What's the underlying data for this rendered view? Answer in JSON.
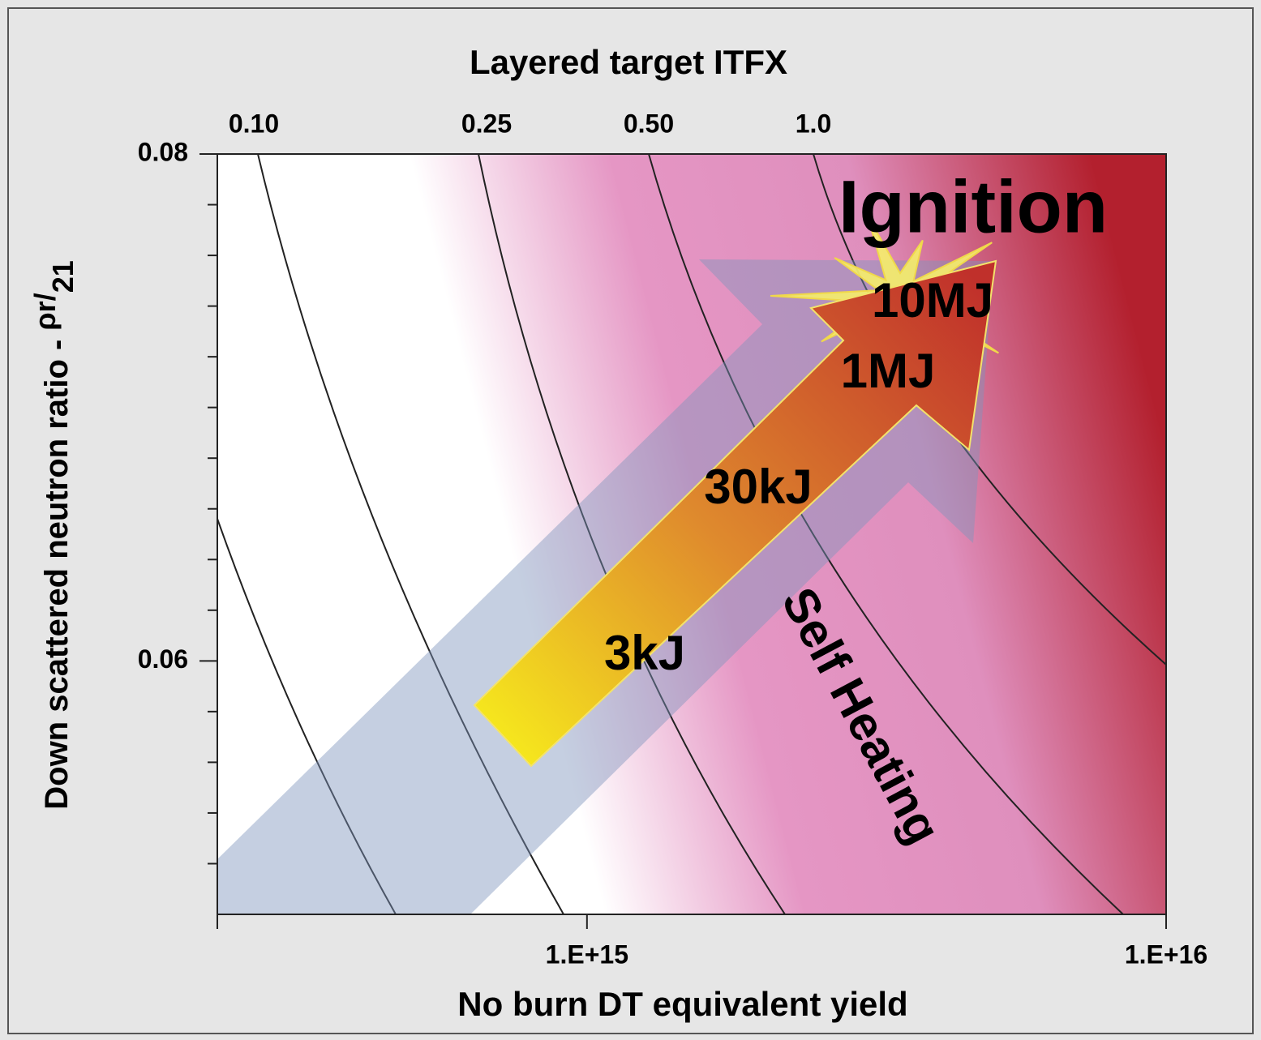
{
  "chart_data": {
    "type": "contour",
    "title": "Layered target ITFX",
    "top_axis_labels": [
      "0.10",
      "0.25",
      "0.50",
      "1.0"
    ],
    "x_label": "No burn DT equivalent yield",
    "y_label": [
      "Down scattered neutron ratio - ",
      "ρr/",
      "21"
    ],
    "x_log": true,
    "xlim": [
      230000000000000.0,
      1e+16
    ],
    "xticks": [
      {
        "value": 1000000000000000.0,
        "label": "1.E+15"
      },
      {
        "value": 1e+16,
        "label": "1.E+16"
      }
    ],
    "ylim": [
      0.05,
      0.08
    ],
    "yticks": [
      0.06,
      0.08
    ],
    "yminorticks": [
      0.052,
      0.054,
      0.056,
      0.058,
      0.062,
      0.064,
      0.066,
      0.068,
      0.07,
      0.072,
      0.074,
      0.076,
      0.078
    ],
    "annotations": [
      "Ignition",
      "10MJ",
      "1MJ",
      "30kJ",
      "3kJ",
      "Self Heating"
    ]
  }
}
